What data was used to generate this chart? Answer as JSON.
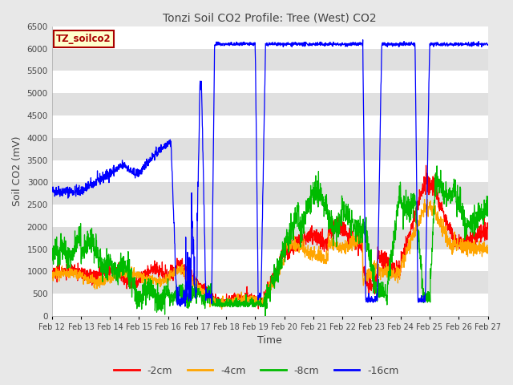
{
  "title": "Tonzi Soil CO2 Profile: Tree (West) CO2",
  "xlabel": "Time",
  "ylabel": "Soil CO2 (mV)",
  "ylim": [
    0,
    6500
  ],
  "yticks": [
    0,
    500,
    1000,
    1500,
    2000,
    2500,
    3000,
    3500,
    4000,
    4500,
    5000,
    5500,
    6000,
    6500
  ],
  "legend_label": "TZ_soilco2",
  "legend_box_color": "#FFFFCC",
  "legend_box_edge": "#AA0000",
  "series_labels": [
    "-2cm",
    "-4cm",
    "-8cm",
    "-16cm"
  ],
  "series_colors": [
    "#FF0000",
    "#FFA500",
    "#00BB00",
    "#0000FF"
  ],
  "title_color": "#444444",
  "background_color": "#E8E8E8",
  "plot_bg_color": "#E0E0E0",
  "grid_color": "#FFFFFF",
  "xtick_labels": [
    "Feb 12",
    "Feb 13",
    "Feb 14",
    "Feb 15",
    "Feb 16",
    "Feb 17",
    "Feb 18",
    "Feb 19",
    "Feb 20",
    "Feb 21",
    "Feb 22",
    "Feb 23",
    "Feb 24",
    "Feb 25",
    "Feb 26",
    "Feb 27"
  ],
  "num_points": 2000,
  "figsize": [
    6.4,
    4.8
  ],
  "dpi": 100
}
